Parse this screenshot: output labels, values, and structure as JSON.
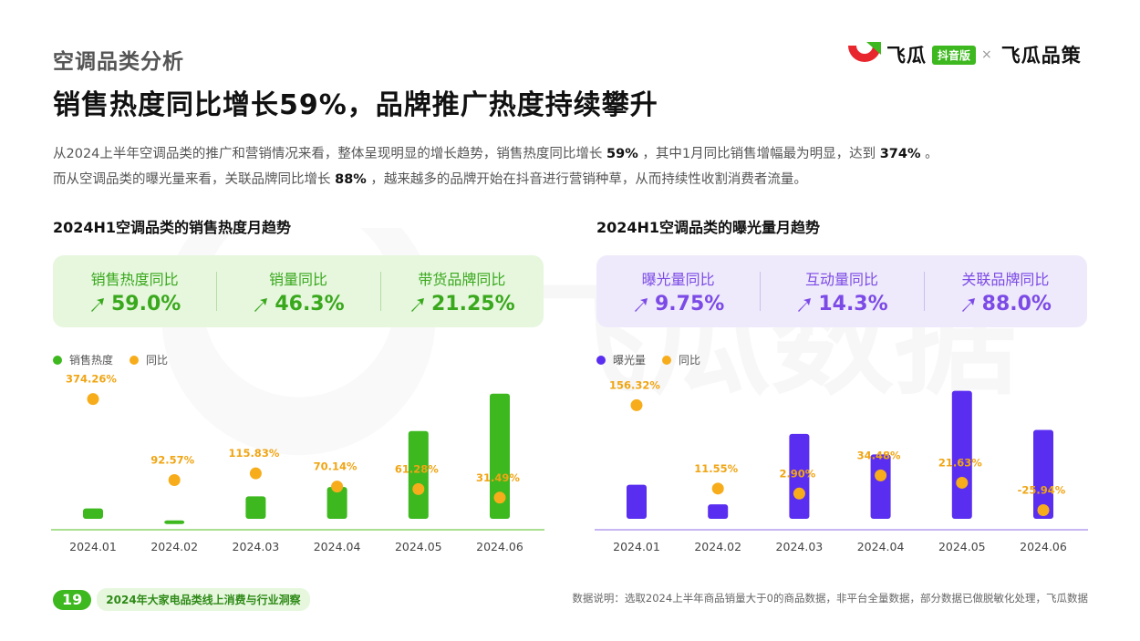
{
  "section_label": "空调品类分析",
  "headline": "销售热度同比增长59%，品牌推广热度持续攀升",
  "logo": {
    "brand": "飞瓜",
    "badge": "抖音版",
    "times": "×",
    "partner": "飞瓜品策"
  },
  "watermark": "飞瓜数据",
  "intro": {
    "l1_a": "从2024上半年空调品类的推广和营销情况来看，整体呈现明显的增长趋势，销售热度同比增长 ",
    "l1_b": "59%",
    "l1_c": " ，其中1月同比销售增幅最为明显，达到 ",
    "l1_d": "374%",
    "l1_e": " 。",
    "l2_a": "而从空调品类的曝光量来看，关联品牌同比增长 ",
    "l2_b": "88%",
    "l2_c": " ，越来越多的品牌开始在抖音进行营销种草，从而持续性收割消费者流量。"
  },
  "left_panel": {
    "title": "2024H1空调品类的销售热度月趋势",
    "kpis": [
      {
        "label": "销售热度同比",
        "value": "59.0%"
      },
      {
        "label": "销量同比",
        "value": "46.3%"
      },
      {
        "label": "带货品牌同比",
        "value": "21.25%"
      }
    ]
  },
  "right_panel": {
    "title": "2024H1空调品类的曝光量月趋势",
    "kpis": [
      {
        "label": "曝光量同比",
        "value": "9.75%"
      },
      {
        "label": "互动量同比",
        "value": "14.3%"
      },
      {
        "label": "关联品牌同比",
        "value": "88.0%"
      }
    ]
  },
  "colors": {
    "green_bar": "#3db81f",
    "purple_bar": "#5a2ef0",
    "yoy_dot": "#f7ad1b",
    "green_axis": "#a8e08f",
    "purple_axis": "#c7b6f3"
  },
  "chart_data": [
    {
      "type": "bar",
      "title": "2024H1空调品类的销售热度月趋势",
      "categories": [
        "2024.01",
        "2024.02",
        "2024.03",
        "2024.04",
        "2024.05",
        "2024.06"
      ],
      "series": [
        {
          "name": "销售热度",
          "kind": "bar",
          "values": [
            16,
            7,
            25,
            32,
            74,
            102
          ]
        },
        {
          "name": "同比",
          "kind": "dot",
          "values": [
            374.26,
            92.57,
            115.83,
            70.14,
            61.28,
            31.49
          ],
          "labels": [
            "374.26%",
            "92.57%",
            "115.83%",
            "70.14%",
            "61.28%",
            "31.49%"
          ]
        }
      ],
      "bar_ylim": [
        0,
        110
      ],
      "dot_ylim": [
        -80,
        430
      ],
      "legend": "top-left",
      "grid": false
    },
    {
      "type": "bar",
      "title": "2024H1空调品类的曝光量月趋势",
      "categories": [
        "2024.01",
        "2024.02",
        "2024.03",
        "2024.04",
        "2024.05",
        "2024.06"
      ],
      "series": [
        {
          "name": "曝光量",
          "kind": "bar",
          "values": [
            46,
            26,
            98,
            77,
            142,
            102
          ]
        },
        {
          "name": "同比",
          "kind": "dot",
          "values": [
            156.32,
            11.55,
            2.9,
            34.48,
            21.63,
            -25.94
          ],
          "labels": [
            "156.32%",
            "11.55%",
            "2.90%",
            "34.48%",
            "21.63%",
            "-25.94%"
          ]
        }
      ],
      "bar_ylim": [
        0,
        150
      ],
      "dot_ylim": [
        -60,
        195
      ],
      "legend": "top-left",
      "grid": false
    }
  ],
  "footer": {
    "page_num": "19",
    "report_name": "2024年大家电品类线上消费与行业洞察",
    "note": "数据说明：选取2024上半年商品销量大于0的商品数据，非平台全量数据，部分数据已做脱敏化处理，飞瓜数据"
  }
}
